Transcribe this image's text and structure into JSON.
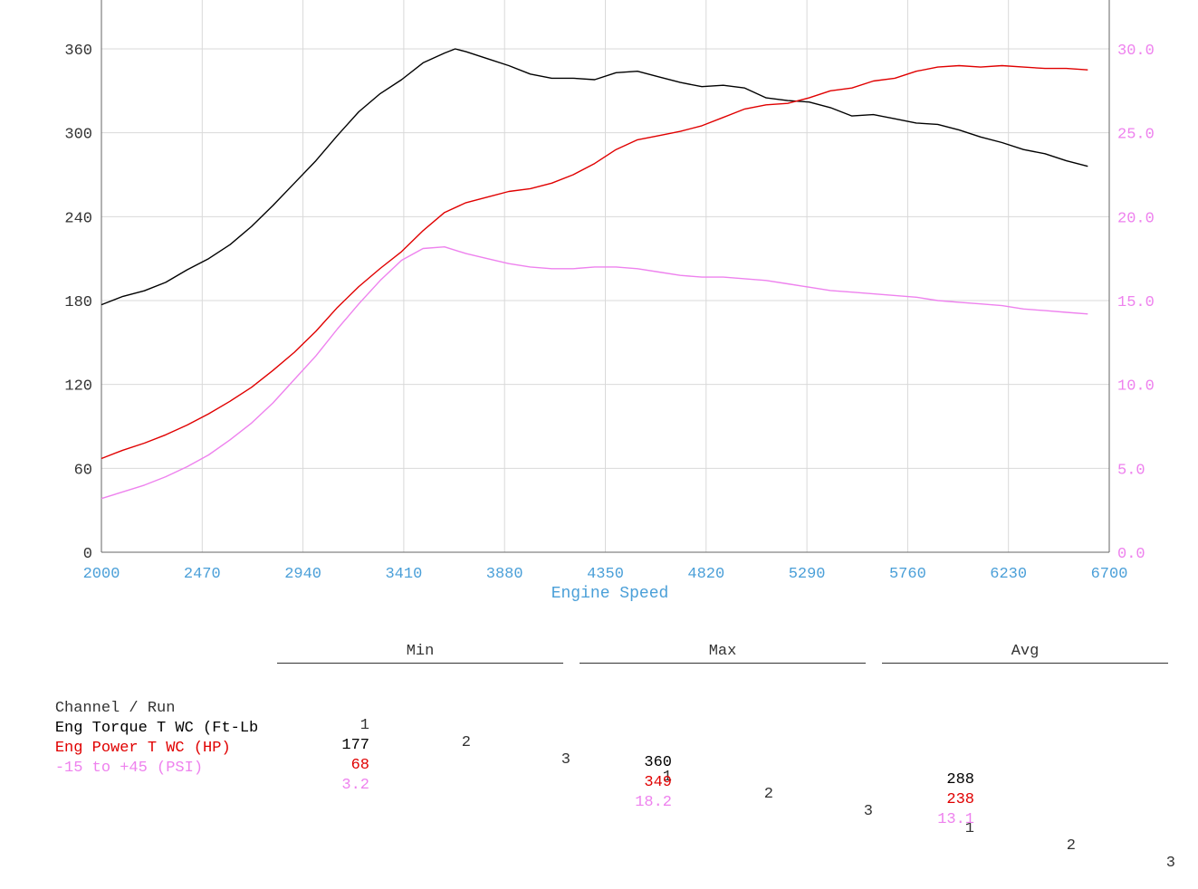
{
  "colors": {
    "torque": "#000000",
    "power": "#e00000",
    "boost": "#ee82ee",
    "grid": "#d9d9d9",
    "axis": "#666666",
    "x_ticks": "#4a9fd8"
  },
  "chart_data": {
    "type": "line",
    "xlabel": "Engine Speed",
    "xlim": [
      2000,
      6700
    ],
    "x_ticks": [
      "2000",
      "2470",
      "2940",
      "3410",
      "3880",
      "4350",
      "4820",
      "5290",
      "5760",
      "6230",
      "6700"
    ],
    "ylim_left": [
      0,
      360
    ],
    "y_ticks_left": [
      "0",
      "60",
      "120",
      "180",
      "240",
      "300",
      "360"
    ],
    "ylim_right": [
      0.0,
      30.0
    ],
    "y_ticks_right": [
      "0.0",
      "5.0",
      "10.0",
      "15.0",
      "20.0",
      "25.0",
      "30.0"
    ],
    "grid": true,
    "series": [
      {
        "name": "Eng Torque T WC (Ft-Lb",
        "axis": "left",
        "points": [
          [
            2000,
            177
          ],
          [
            2100,
            183
          ],
          [
            2200,
            187
          ],
          [
            2300,
            193
          ],
          [
            2400,
            202
          ],
          [
            2500,
            210
          ],
          [
            2600,
            220
          ],
          [
            2700,
            233
          ],
          [
            2800,
            248
          ],
          [
            2900,
            264
          ],
          [
            3000,
            280
          ],
          [
            3100,
            298
          ],
          [
            3200,
            315
          ],
          [
            3300,
            328
          ],
          [
            3400,
            338
          ],
          [
            3500,
            350
          ],
          [
            3600,
            357
          ],
          [
            3650,
            360
          ],
          [
            3700,
            358
          ],
          [
            3800,
            353
          ],
          [
            3900,
            348
          ],
          [
            4000,
            342
          ],
          [
            4100,
            339
          ],
          [
            4200,
            339
          ],
          [
            4300,
            338
          ],
          [
            4400,
            343
          ],
          [
            4500,
            344
          ],
          [
            4600,
            340
          ],
          [
            4700,
            336
          ],
          [
            4800,
            333
          ],
          [
            4900,
            334
          ],
          [
            5000,
            332
          ],
          [
            5100,
            325
          ],
          [
            5200,
            323
          ],
          [
            5300,
            322
          ],
          [
            5400,
            318
          ],
          [
            5500,
            312
          ],
          [
            5600,
            313
          ],
          [
            5700,
            310
          ],
          [
            5800,
            307
          ],
          [
            5900,
            306
          ],
          [
            6000,
            302
          ],
          [
            6100,
            297
          ],
          [
            6200,
            293
          ],
          [
            6300,
            288
          ],
          [
            6400,
            285
          ],
          [
            6500,
            280
          ],
          [
            6600,
            276
          ]
        ]
      },
      {
        "name": "Eng Power T WC (HP)",
        "axis": "left",
        "points": [
          [
            2000,
            67
          ],
          [
            2100,
            73
          ],
          [
            2200,
            78
          ],
          [
            2300,
            84
          ],
          [
            2400,
            91
          ],
          [
            2500,
            99
          ],
          [
            2600,
            108
          ],
          [
            2700,
            118
          ],
          [
            2800,
            130
          ],
          [
            2900,
            143
          ],
          [
            3000,
            158
          ],
          [
            3100,
            175
          ],
          [
            3200,
            190
          ],
          [
            3300,
            203
          ],
          [
            3400,
            215
          ],
          [
            3500,
            230
          ],
          [
            3600,
            243
          ],
          [
            3700,
            250
          ],
          [
            3800,
            254
          ],
          [
            3900,
            258
          ],
          [
            4000,
            260
          ],
          [
            4100,
            264
          ],
          [
            4200,
            270
          ],
          [
            4300,
            278
          ],
          [
            4400,
            288
          ],
          [
            4500,
            295
          ],
          [
            4600,
            298
          ],
          [
            4700,
            301
          ],
          [
            4800,
            305
          ],
          [
            4900,
            311
          ],
          [
            5000,
            317
          ],
          [
            5100,
            320
          ],
          [
            5200,
            321
          ],
          [
            5300,
            325
          ],
          [
            5400,
            330
          ],
          [
            5500,
            332
          ],
          [
            5600,
            337
          ],
          [
            5700,
            339
          ],
          [
            5800,
            344
          ],
          [
            5900,
            347
          ],
          [
            6000,
            348
          ],
          [
            6100,
            347
          ],
          [
            6200,
            348
          ],
          [
            6300,
            347
          ],
          [
            6400,
            346
          ],
          [
            6500,
            346
          ],
          [
            6600,
            345
          ]
        ]
      },
      {
        "name": "-15 to +45 (PSI)",
        "axis": "right",
        "points": [
          [
            2000,
            3.2
          ],
          [
            2100,
            3.6
          ],
          [
            2200,
            4.0
          ],
          [
            2300,
            4.5
          ],
          [
            2400,
            5.1
          ],
          [
            2500,
            5.8
          ],
          [
            2600,
            6.7
          ],
          [
            2700,
            7.7
          ],
          [
            2800,
            8.9
          ],
          [
            2900,
            10.3
          ],
          [
            3000,
            11.7
          ],
          [
            3100,
            13.3
          ],
          [
            3200,
            14.8
          ],
          [
            3300,
            16.2
          ],
          [
            3400,
            17.4
          ],
          [
            3500,
            18.1
          ],
          [
            3600,
            18.2
          ],
          [
            3700,
            17.8
          ],
          [
            3800,
            17.5
          ],
          [
            3900,
            17.2
          ],
          [
            4000,
            17.0
          ],
          [
            4100,
            16.9
          ],
          [
            4200,
            16.9
          ],
          [
            4300,
            17.0
          ],
          [
            4400,
            17.0
          ],
          [
            4500,
            16.9
          ],
          [
            4600,
            16.7
          ],
          [
            4700,
            16.5
          ],
          [
            4800,
            16.4
          ],
          [
            4900,
            16.4
          ],
          [
            5000,
            16.3
          ],
          [
            5100,
            16.2
          ],
          [
            5200,
            16.0
          ],
          [
            5300,
            15.8
          ],
          [
            5400,
            15.6
          ],
          [
            5500,
            15.5
          ],
          [
            5600,
            15.4
          ],
          [
            5700,
            15.3
          ],
          [
            5800,
            15.2
          ],
          [
            5900,
            15.0
          ],
          [
            6000,
            14.9
          ],
          [
            6100,
            14.8
          ],
          [
            6200,
            14.7
          ],
          [
            6300,
            14.5
          ],
          [
            6400,
            14.4
          ],
          [
            6500,
            14.3
          ],
          [
            6600,
            14.2
          ]
        ]
      }
    ]
  },
  "stats": {
    "groups": [
      "Min",
      "Max",
      "Avg"
    ],
    "run_labels": [
      "1",
      "2",
      "3"
    ],
    "header_label": "Channel / Run",
    "rows": [
      {
        "label": "Eng Torque T WC (Ft-Lb",
        "min": "177",
        "max": "360",
        "avg": "288"
      },
      {
        "label": "Eng Power T WC (HP)",
        "min": "68",
        "max": "349",
        "avg": "238"
      },
      {
        "label": "-15 to +45 (PSI)",
        "min": "3.2",
        "max": "18.2",
        "avg": "13.1"
      }
    ]
  }
}
